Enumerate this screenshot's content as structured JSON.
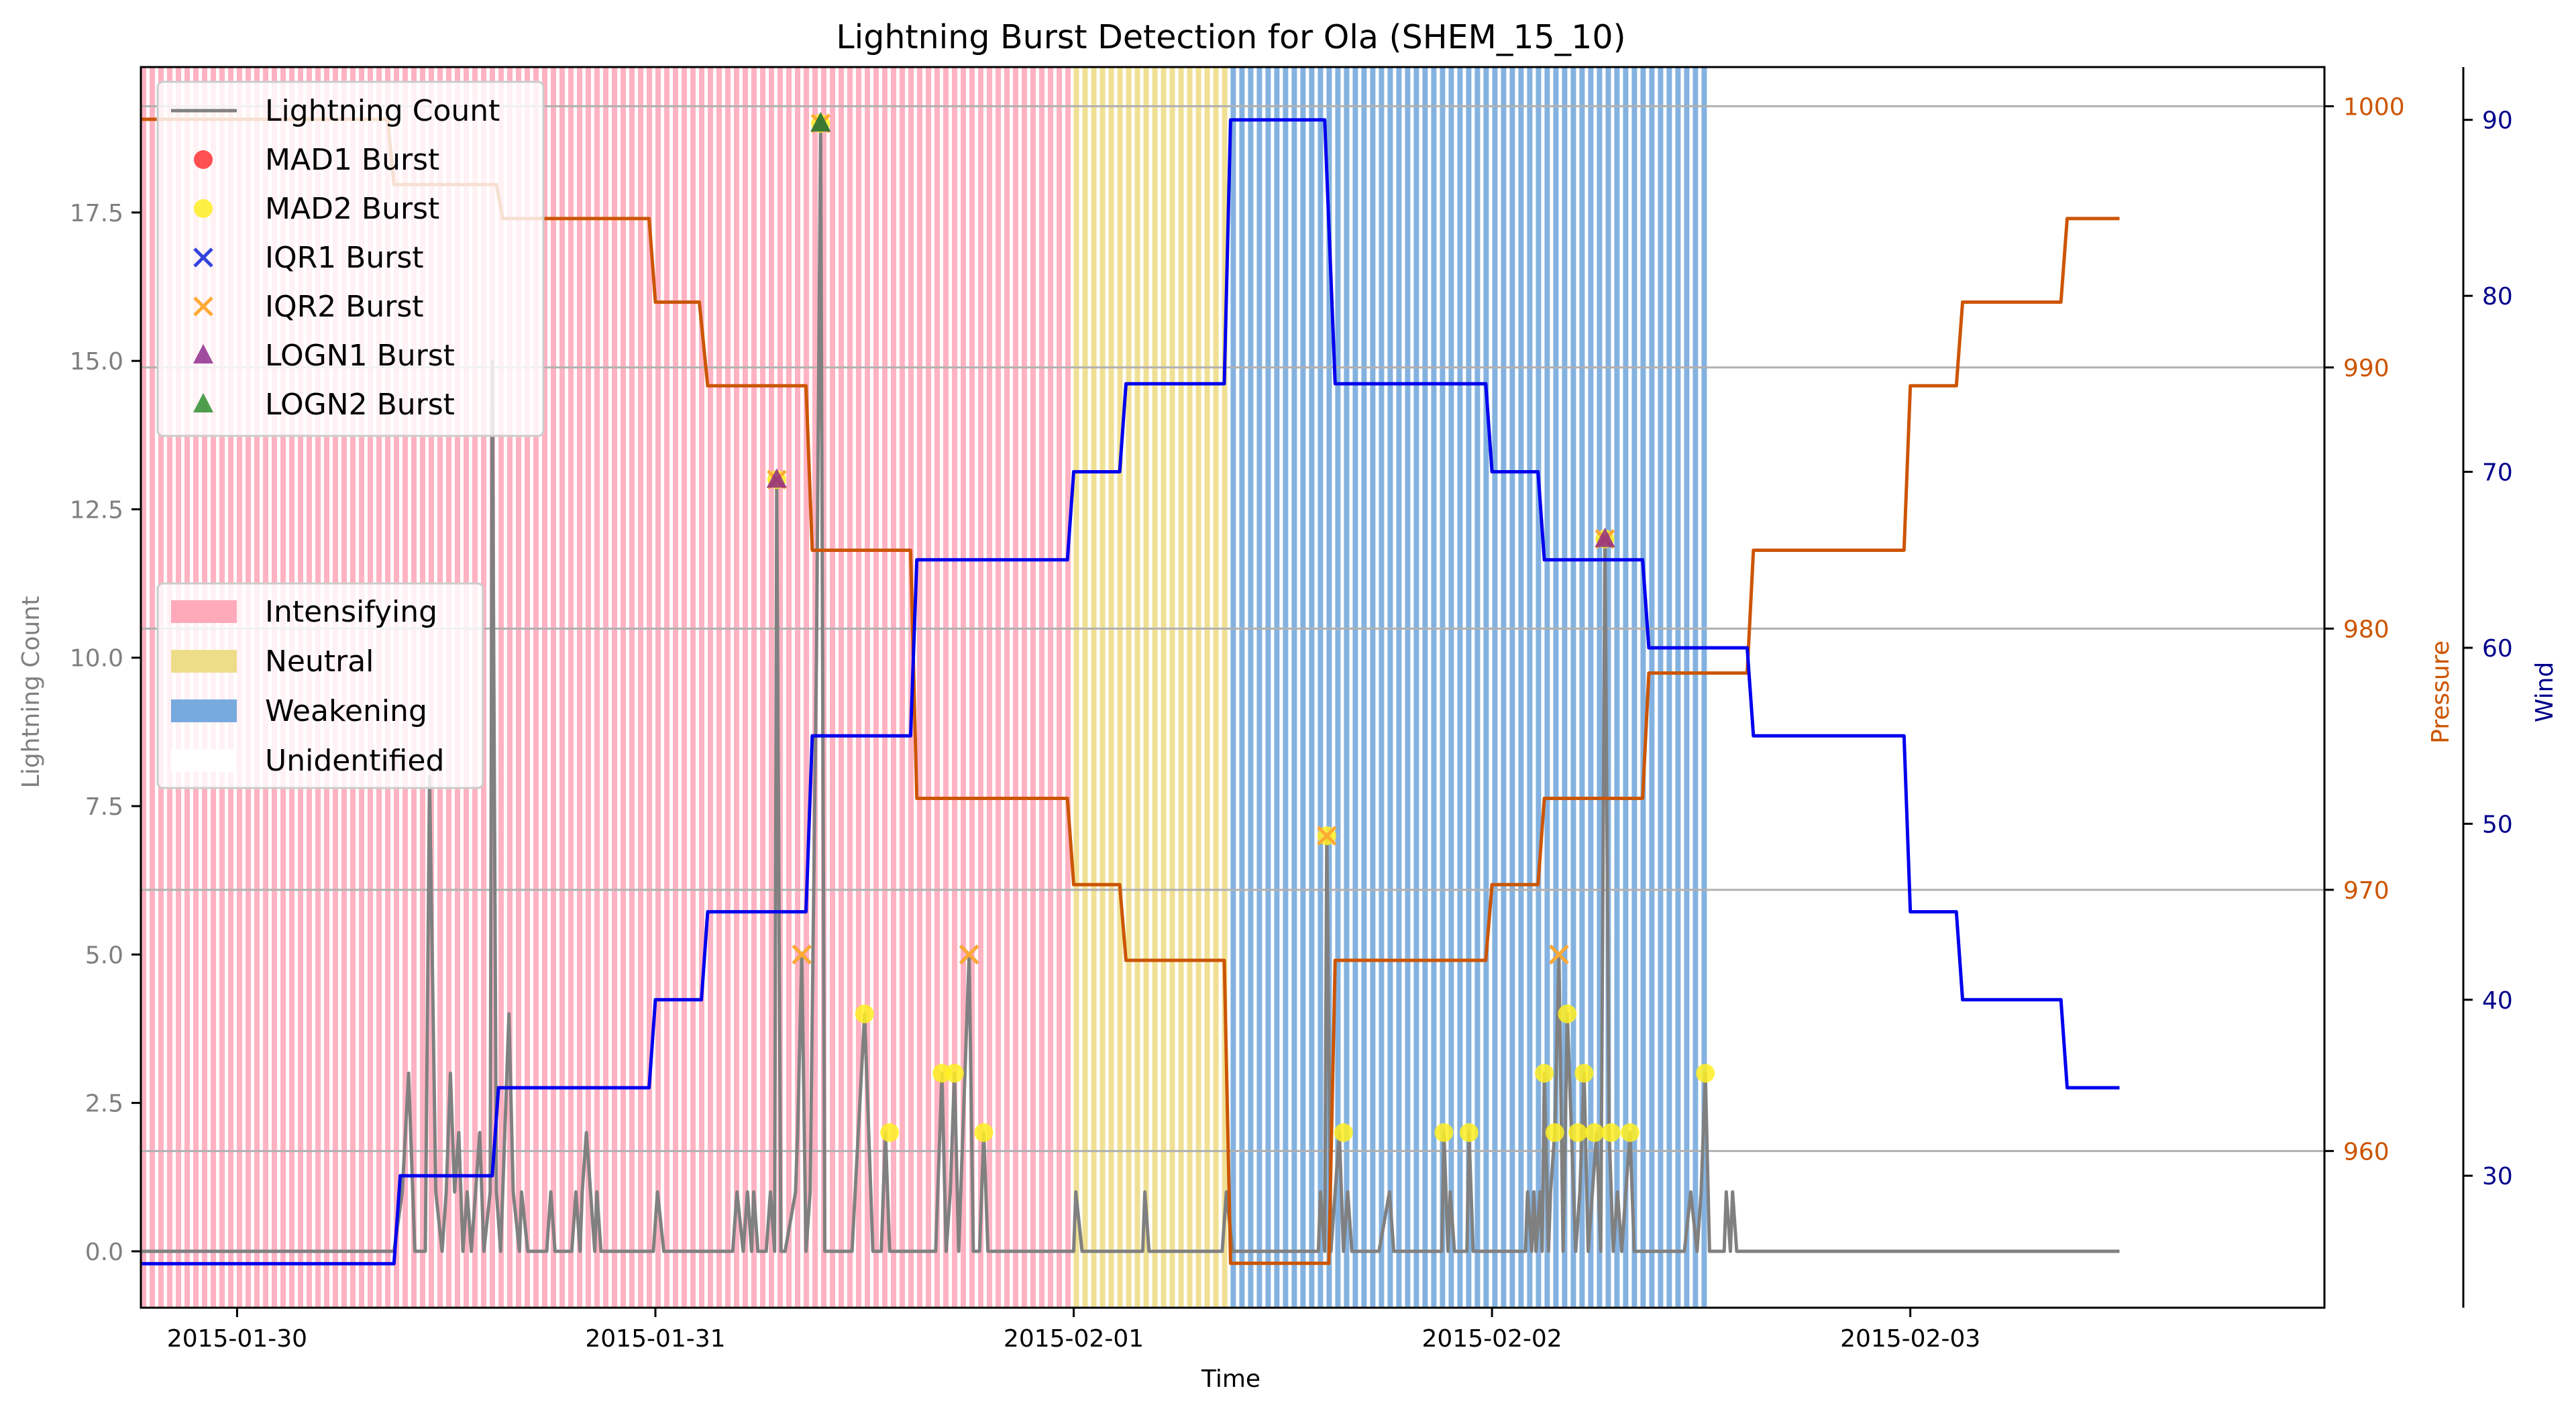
{
  "chart_data": {
    "type": "line",
    "title": "Lightning Burst Detection for Ola (SHEM_15_10)",
    "xlabel": "Time",
    "ylabel_left": "Lightning Count",
    "ylabel_pressure": "Pressure",
    "ylabel_wind": "Wind",
    "x_ticks": [
      "2015-01-30",
      "2015-01-31",
      "2015-02-01",
      "2015-02-02",
      "2015-02-03"
    ],
    "x_range": [
      -0.23,
      4.99
    ],
    "ylim_left": [
      -0.95,
      19.95
    ],
    "ylim_pressure": [
      954.0,
      1001.5
    ],
    "ylim_wind": [
      22.5,
      93.0
    ],
    "y_ticks_left": [
      "0.0",
      "2.5",
      "5.0",
      "7.5",
      "10.0",
      "12.5",
      "15.0",
      "17.5"
    ],
    "y_ticks_pressure": [
      "960",
      "970",
      "980",
      "990",
      "1000"
    ],
    "y_ticks_wind": [
      "30",
      "40",
      "50",
      "60",
      "70",
      "80",
      "90"
    ],
    "grid_y_pressure": true,
    "colors": {
      "lightning": "#808080",
      "pressure": "#cc5500",
      "wind": "#0000ee",
      "pressure_axis": "#cc5500",
      "wind_axis": "#00008b",
      "intensifying": "#ffaabb",
      "neutral": "#eedd88",
      "weakening": "#77aadd",
      "mad1": "#ff3333",
      "mad2": "#ffee22",
      "iqr1": "#3344dd",
      "iqr2": "#ffaa33",
      "logn1": "#882288",
      "logn2": "#228822"
    },
    "phases": [
      {
        "name": "Intensifying",
        "start": -0.23,
        "end": 2.0
      },
      {
        "name": "Neutral",
        "start": 2.0,
        "end": 2.375
      },
      {
        "name": "Weakening",
        "start": 2.375,
        "end": 3.52
      }
    ],
    "legend_lines": [
      {
        "label": "Lightning Count",
        "marker": "line",
        "color": "#808080"
      },
      {
        "label": "MAD1 Burst",
        "marker": "circle",
        "color": "#ff3333"
      },
      {
        "label": "MAD2 Burst",
        "marker": "circle",
        "color": "#ffee22"
      },
      {
        "label": "IQR1 Burst",
        "marker": "x",
        "color": "#3344dd"
      },
      {
        "label": "IQR2 Burst",
        "marker": "x",
        "color": "#ffaa33"
      },
      {
        "label": "LOGN1 Burst",
        "marker": "triangle",
        "color": "#882288"
      },
      {
        "label": "LOGN2 Burst",
        "marker": "triangle",
        "color": "#228822"
      }
    ],
    "legend_phases": [
      {
        "label": "Intensifying",
        "color": "#ffaabb"
      },
      {
        "label": "Neutral",
        "color": "#eedd88"
      },
      {
        "label": "Weakening",
        "color": "#77aadd"
      },
      {
        "label": "Unidentified",
        "color": "#ffffff"
      }
    ],
    "pressure_series": [
      [
        -0.23,
        999.5
      ],
      [
        0.36,
        999.5
      ],
      [
        0.375,
        997.0
      ],
      [
        0.62,
        997.0
      ],
      [
        0.635,
        995.7
      ],
      [
        0.985,
        995.7
      ],
      [
        1.0,
        992.5
      ],
      [
        1.105,
        992.5
      ],
      [
        1.125,
        989.3
      ],
      [
        1.36,
        989.3
      ],
      [
        1.375,
        983.0
      ],
      [
        1.61,
        983.0
      ],
      [
        1.625,
        973.5
      ],
      [
        1.985,
        973.5
      ],
      [
        2.0,
        970.2
      ],
      [
        2.11,
        970.2
      ],
      [
        2.125,
        967.3
      ],
      [
        2.36,
        967.3
      ],
      [
        2.375,
        955.7
      ],
      [
        2.61,
        955.7
      ],
      [
        2.625,
        967.3
      ],
      [
        2.985,
        967.3
      ],
      [
        3.0,
        970.2
      ],
      [
        3.11,
        970.2
      ],
      [
        3.125,
        973.5
      ],
      [
        3.36,
        973.5
      ],
      [
        3.375,
        978.3
      ],
      [
        3.61,
        978.3
      ],
      [
        3.625,
        983.0
      ],
      [
        3.985,
        983.0
      ],
      [
        4.0,
        989.3
      ],
      [
        4.11,
        989.3
      ],
      [
        4.125,
        992.5
      ],
      [
        4.36,
        992.5
      ],
      [
        4.375,
        995.7
      ],
      [
        4.5,
        995.7
      ]
    ],
    "wind_series": [
      [
        -0.23,
        25
      ],
      [
        0.375,
        25
      ],
      [
        0.39,
        30
      ],
      [
        0.61,
        30
      ],
      [
        0.625,
        35
      ],
      [
        0.985,
        35
      ],
      [
        1.0,
        40
      ],
      [
        1.11,
        40
      ],
      [
        1.125,
        45
      ],
      [
        1.36,
        45
      ],
      [
        1.375,
        55
      ],
      [
        1.61,
        55
      ],
      [
        1.625,
        65
      ],
      [
        1.985,
        65
      ],
      [
        2.0,
        70
      ],
      [
        2.11,
        70
      ],
      [
        2.125,
        75
      ],
      [
        2.36,
        75
      ],
      [
        2.375,
        90
      ],
      [
        2.6,
        90
      ],
      [
        2.625,
        75
      ],
      [
        2.985,
        75
      ],
      [
        3.0,
        70
      ],
      [
        3.11,
        70
      ],
      [
        3.125,
        65
      ],
      [
        3.36,
        65
      ],
      [
        3.375,
        60
      ],
      [
        3.61,
        60
      ],
      [
        3.625,
        55
      ],
      [
        3.985,
        55
      ],
      [
        4.0,
        45
      ],
      [
        4.11,
        45
      ],
      [
        4.125,
        40
      ],
      [
        4.36,
        40
      ],
      [
        4.375,
        35
      ],
      [
        4.5,
        35
      ]
    ],
    "lightning_series": [
      [
        -0.23,
        0
      ],
      [
        0.375,
        0
      ],
      [
        0.395,
        1
      ],
      [
        0.41,
        3
      ],
      [
        0.425,
        0
      ],
      [
        0.45,
        0
      ],
      [
        0.46,
        8
      ],
      [
        0.475,
        1
      ],
      [
        0.49,
        0
      ],
      [
        0.5,
        1
      ],
      [
        0.51,
        3
      ],
      [
        0.52,
        1
      ],
      [
        0.53,
        2
      ],
      [
        0.54,
        0
      ],
      [
        0.55,
        1
      ],
      [
        0.56,
        0
      ],
      [
        0.57,
        1
      ],
      [
        0.58,
        2
      ],
      [
        0.59,
        0
      ],
      [
        0.605,
        1
      ],
      [
        0.61,
        15
      ],
      [
        0.62,
        1
      ],
      [
        0.63,
        0
      ],
      [
        0.64,
        2
      ],
      [
        0.65,
        4
      ],
      [
        0.66,
        1
      ],
      [
        0.675,
        0
      ],
      [
        0.68,
        1
      ],
      [
        0.695,
        0
      ],
      [
        0.74,
        0
      ],
      [
        0.75,
        1
      ],
      [
        0.76,
        0
      ],
      [
        0.8,
        0
      ],
      [
        0.81,
        1
      ],
      [
        0.82,
        0
      ],
      [
        0.825,
        1
      ],
      [
        0.835,
        2
      ],
      [
        0.845,
        1
      ],
      [
        0.855,
        0
      ],
      [
        0.86,
        1
      ],
      [
        0.87,
        0
      ],
      [
        0.995,
        0
      ],
      [
        1.005,
        1
      ],
      [
        1.02,
        0
      ],
      [
        1.185,
        0
      ],
      [
        1.195,
        1
      ],
      [
        1.21,
        0
      ],
      [
        1.22,
        1
      ],
      [
        1.23,
        0
      ],
      [
        1.235,
        1
      ],
      [
        1.245,
        0
      ],
      [
        1.265,
        0
      ],
      [
        1.275,
        1
      ],
      [
        1.285,
        0
      ],
      [
        1.29,
        13
      ],
      [
        1.3,
        0
      ],
      [
        1.31,
        0
      ],
      [
        1.335,
        1
      ],
      [
        1.34,
        2
      ],
      [
        1.35,
        5
      ],
      [
        1.36,
        0
      ],
      [
        1.37,
        1
      ],
      [
        1.385,
        10
      ],
      [
        1.395,
        19
      ],
      [
        1.405,
        0
      ],
      [
        1.47,
        0
      ],
      [
        1.5,
        4
      ],
      [
        1.52,
        0
      ],
      [
        1.54,
        0
      ],
      [
        1.55,
        2
      ],
      [
        1.56,
        0
      ],
      [
        1.65,
        0
      ],
      [
        1.67,
        0
      ],
      [
        1.685,
        3
      ],
      [
        1.695,
        0
      ],
      [
        1.705,
        1
      ],
      [
        1.715,
        3
      ],
      [
        1.725,
        0
      ],
      [
        1.735,
        2
      ],
      [
        1.75,
        5
      ],
      [
        1.76,
        0
      ],
      [
        1.775,
        0
      ],
      [
        1.785,
        2
      ],
      [
        1.795,
        0
      ],
      [
        2.0,
        0
      ],
      [
        2.005,
        1
      ],
      [
        2.02,
        0
      ],
      [
        2.165,
        0
      ],
      [
        2.17,
        1
      ],
      [
        2.18,
        0
      ],
      [
        2.355,
        0
      ],
      [
        2.365,
        1
      ],
      [
        2.38,
        0
      ],
      [
        2.585,
        0
      ],
      [
        2.59,
        1
      ],
      [
        2.6,
        0
      ],
      [
        2.605,
        7
      ],
      [
        2.615,
        0
      ],
      [
        2.625,
        1
      ],
      [
        2.635,
        2
      ],
      [
        2.645,
        0
      ],
      [
        2.655,
        1
      ],
      [
        2.665,
        0
      ],
      [
        2.73,
        0
      ],
      [
        2.755,
        1
      ],
      [
        2.765,
        0
      ],
      [
        2.88,
        0
      ],
      [
        2.885,
        2
      ],
      [
        2.895,
        0
      ],
      [
        2.9,
        1
      ],
      [
        2.91,
        0
      ],
      [
        2.94,
        0
      ],
      [
        2.945,
        2
      ],
      [
        2.955,
        0
      ],
      [
        3.08,
        0
      ],
      [
        3.085,
        1
      ],
      [
        3.095,
        0
      ],
      [
        3.1,
        1
      ],
      [
        3.105,
        0
      ],
      [
        3.115,
        1
      ],
      [
        3.12,
        0
      ],
      [
        3.125,
        3
      ],
      [
        3.135,
        0
      ],
      [
        3.14,
        1
      ],
      [
        3.15,
        2
      ],
      [
        3.16,
        5
      ],
      [
        3.17,
        0
      ],
      [
        3.18,
        4
      ],
      [
        3.19,
        2
      ],
      [
        3.2,
        0
      ],
      [
        3.21,
        1
      ],
      [
        3.22,
        3
      ],
      [
        3.23,
        0
      ],
      [
        3.24,
        1
      ],
      [
        3.25,
        2
      ],
      [
        3.26,
        0
      ],
      [
        3.27,
        12
      ],
      [
        3.28,
        2
      ],
      [
        3.29,
        0
      ],
      [
        3.3,
        1
      ],
      [
        3.31,
        0
      ],
      [
        3.32,
        1
      ],
      [
        3.33,
        2
      ],
      [
        3.34,
        0
      ],
      [
        3.46,
        0
      ],
      [
        3.475,
        1
      ],
      [
        3.49,
        0
      ],
      [
        3.5,
        1
      ],
      [
        3.51,
        3
      ],
      [
        3.52,
        0
      ],
      [
        3.555,
        0
      ],
      [
        3.56,
        1
      ],
      [
        3.57,
        0
      ],
      [
        3.575,
        1
      ],
      [
        3.585,
        0
      ],
      [
        4.5,
        0
      ]
    ],
    "bursts": {
      "mad2": [
        [
          1.29,
          13
        ],
        [
          1.395,
          19
        ],
        [
          1.5,
          4
        ],
        [
          1.56,
          2
        ],
        [
          1.685,
          3
        ],
        [
          1.715,
          3
        ],
        [
          1.785,
          2
        ],
        [
          2.605,
          7
        ],
        [
          2.645,
          2
        ],
        [
          2.885,
          2
        ],
        [
          2.945,
          2
        ],
        [
          3.125,
          3
        ],
        [
          3.15,
          2
        ],
        [
          3.18,
          4
        ],
        [
          3.205,
          2
        ],
        [
          3.22,
          3
        ],
        [
          3.245,
          2
        ],
        [
          3.27,
          12
        ],
        [
          3.285,
          2
        ],
        [
          3.33,
          2
        ],
        [
          3.51,
          3
        ]
      ],
      "iqr1": [
        [
          1.35,
          5
        ],
        [
          1.75,
          5
        ],
        [
          3.16,
          5
        ],
        [
          3.27,
          12
        ]
      ],
      "iqr2": [
        [
          1.29,
          13
        ],
        [
          1.35,
          5
        ],
        [
          1.395,
          19
        ],
        [
          1.75,
          5
        ],
        [
          2.605,
          7
        ],
        [
          3.16,
          5
        ],
        [
          3.27,
          12
        ]
      ],
      "logn1": [
        [
          1.29,
          13
        ],
        [
          1.395,
          19
        ],
        [
          3.27,
          12
        ]
      ],
      "logn2": [
        [
          1.395,
          19
        ]
      ]
    }
  }
}
